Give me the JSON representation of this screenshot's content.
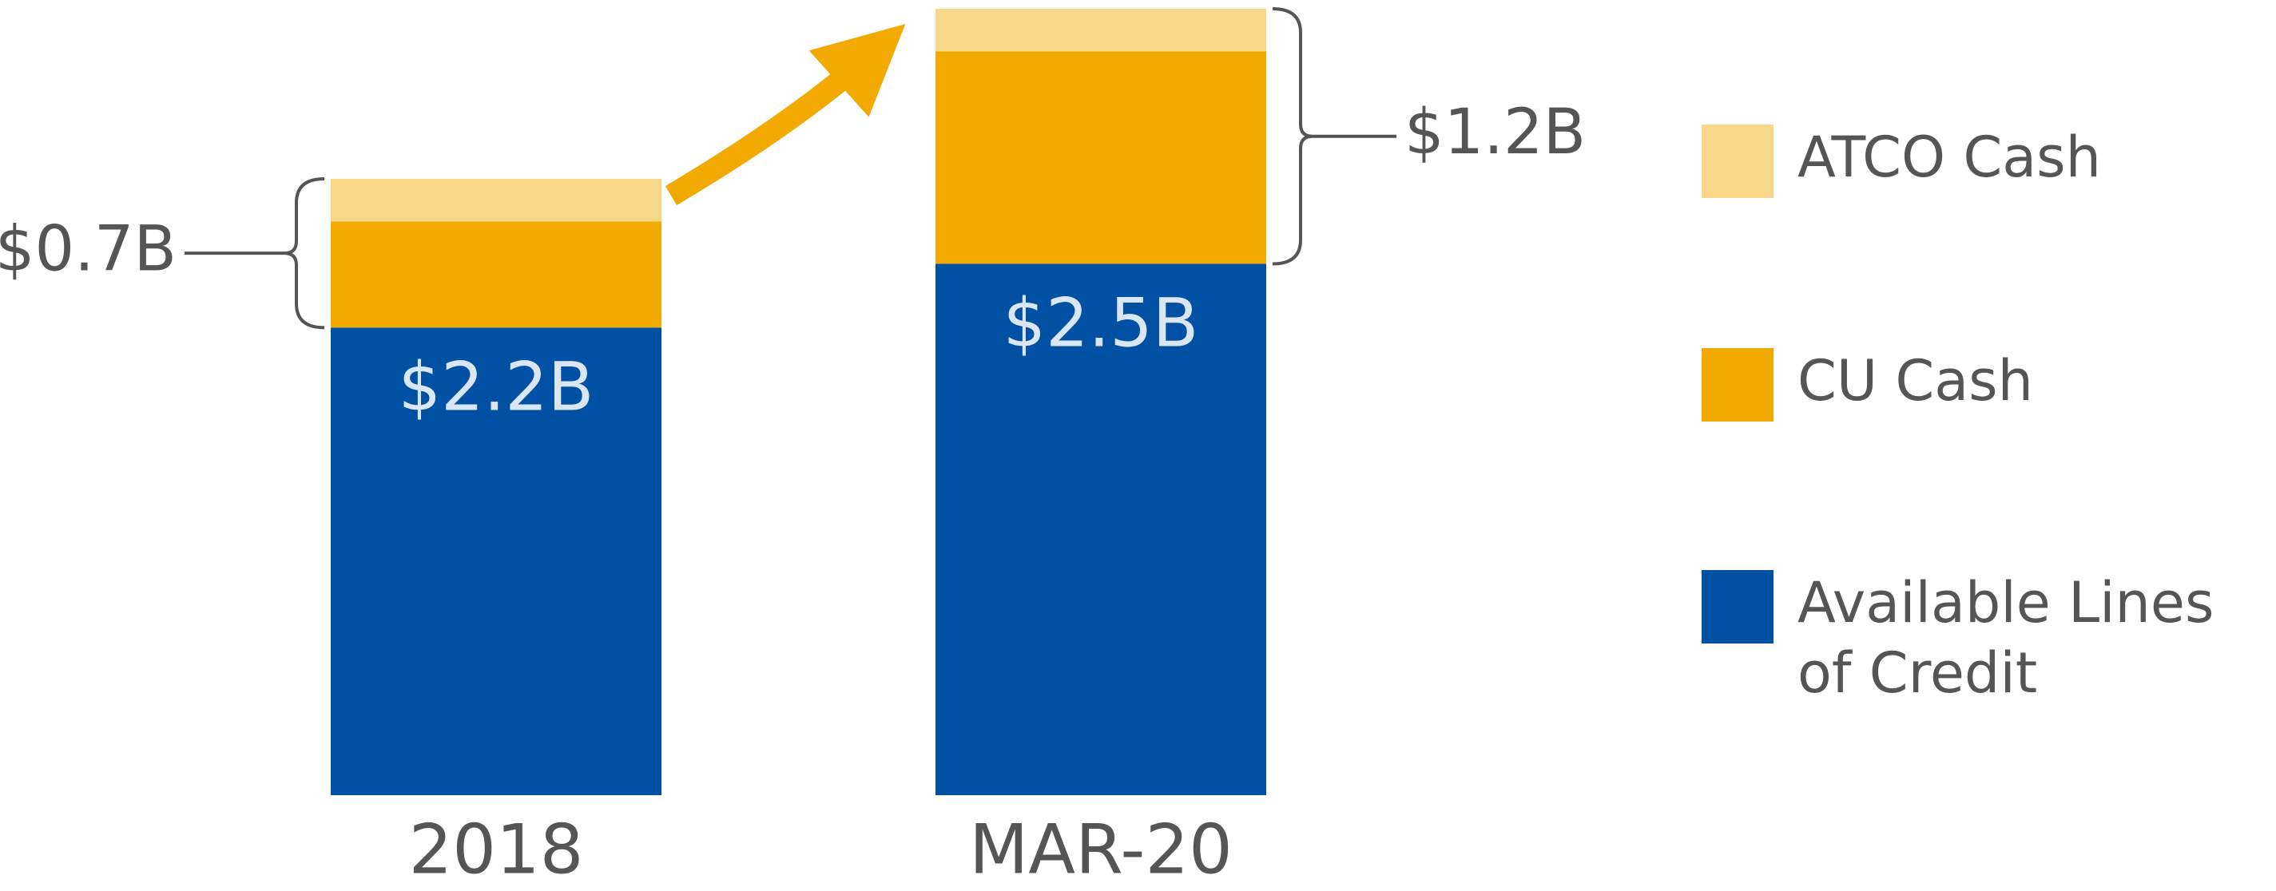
{
  "chart_data": {
    "type": "stacked_bar",
    "categories": [
      "2018",
      "MAR-20"
    ],
    "series": [
      {
        "name": "Available Lines of Credit",
        "color": "#0050a4",
        "values": [
          2.2,
          2.5
        ],
        "value_labels": [
          "$2.2B",
          "$2.5B"
        ]
      },
      {
        "name": "CU Cash",
        "color": "#f2a900",
        "values": [
          0.5,
          1.0
        ]
      },
      {
        "name": "ATCO Cash",
        "color": "#f9d789",
        "values": [
          0.2,
          0.2
        ]
      }
    ],
    "bracket_labels": [
      "$0.7B",
      "$1.2B"
    ]
  }
}
